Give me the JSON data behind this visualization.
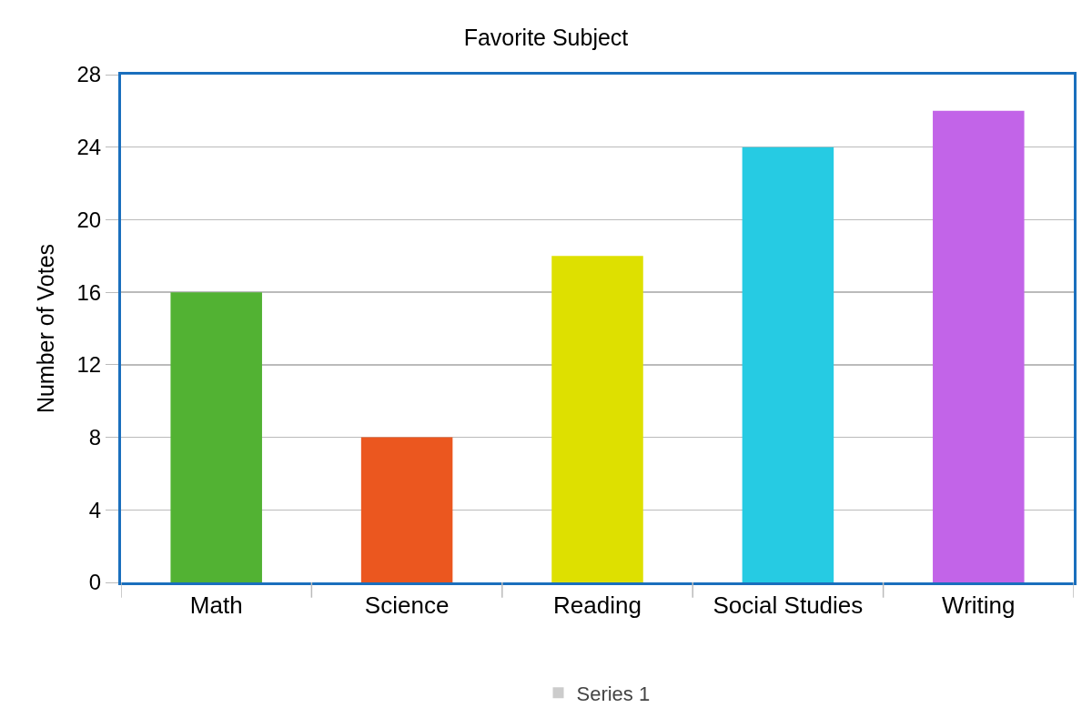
{
  "chart_data": {
    "type": "bar",
    "title": "Favorite Subject",
    "ylabel": "Number of Votes",
    "categories": [
      "Math",
      "Science",
      "Reading",
      "Social Studies",
      "Writing"
    ],
    "series": [
      {
        "name": "Series 1",
        "color": "#cccccc",
        "colors": [
          "#52b233",
          "#eb571f",
          "#dee000",
          "#26cbe3",
          "#c264e8"
        ],
        "values": [
          16,
          8,
          18,
          24,
          26
        ]
      }
    ],
    "ylim": [
      0,
      28
    ],
    "yticks": [
      0,
      4,
      8,
      12,
      16,
      20,
      24,
      28
    ],
    "grid": "y",
    "legend": "bottom"
  }
}
